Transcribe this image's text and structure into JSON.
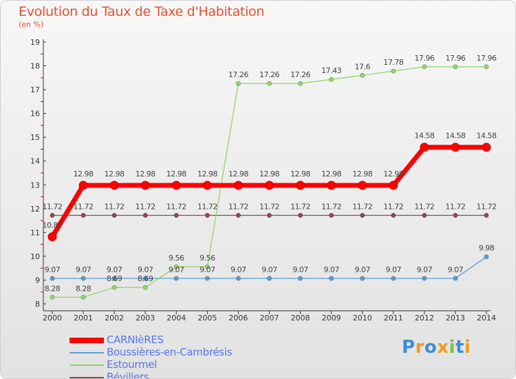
{
  "header": {
    "title": "Evolution du Taux de Taxe d'Habitation",
    "subtitle": "(en %)"
  },
  "logo": {
    "text": "Proxiti",
    "colors": [
      "#3a8fd6",
      "#f29b1d",
      "#3a8fd6",
      "#f29b1d",
      "#7bc043",
      "#3a8fd6",
      "#f29b1d"
    ]
  },
  "chart_data": {
    "type": "line",
    "title": "Evolution du Taux de Taxe d'Habitation",
    "ylabel": "(en %)",
    "x": [
      "2000",
      "2001",
      "2002",
      "2003",
      "2004",
      "2005",
      "2006",
      "2007",
      "2008",
      "2009",
      "2010",
      "2011",
      "2012",
      "2013",
      "2014"
    ],
    "ylim": [
      8,
      19
    ],
    "yticks": [
      8,
      9,
      10,
      11,
      12,
      13,
      14,
      15,
      16,
      17,
      18,
      19
    ],
    "grid": false,
    "legend_position": "bottom-left",
    "series": [
      {
        "name": "CARNIèRES",
        "color": "#ff0000",
        "values": [
          10.82,
          12.98,
          12.98,
          12.98,
          12.98,
          12.98,
          12.98,
          12.98,
          12.98,
          12.98,
          12.98,
          12.98,
          14.58,
          14.58,
          14.58
        ],
        "labels": [
          "10.82",
          "12.98",
          "12.98",
          "12.98",
          "12.98",
          "12.98",
          "12.98",
          "12.98",
          "12.98",
          "12.98",
          "12.98",
          "12.98",
          "14.58",
          "14.58",
          "14.58"
        ]
      },
      {
        "name": "Boussières-en-Cambrésis",
        "color": "#5b9bd5",
        "values": [
          9.07,
          9.07,
          9.07,
          9.07,
          9.07,
          9.07,
          9.07,
          9.07,
          9.07,
          9.07,
          9.07,
          9.07,
          9.07,
          9.07,
          9.98
        ],
        "labels": [
          "9.07",
          "9.07",
          "9.07",
          "9.07",
          "9.07",
          "9.07",
          "9.07",
          "9.07",
          "9.07",
          "9.07",
          "9.07",
          "9.07",
          "9.07",
          "9.07",
          "9.98"
        ]
      },
      {
        "name": "Estourmel",
        "color": "#8fd66a",
        "values": [
          8.28,
          8.28,
          8.69,
          8.69,
          9.56,
          9.56,
          17.26,
          17.26,
          17.26,
          17.43,
          17.6,
          17.78,
          17.96,
          17.96,
          17.96
        ],
        "labels": [
          "8.28",
          "8.28",
          "8.69",
          "8.69",
          "9.56",
          "9.56",
          "17.26",
          "17.26",
          "17.26",
          "17.43",
          "17.6",
          "17.78",
          "17.96",
          "17.96",
          "17.96"
        ]
      },
      {
        "name": "Bévillers",
        "color": "#8b4b4b",
        "values": [
          11.72,
          11.72,
          11.72,
          11.72,
          11.72,
          11.72,
          11.72,
          11.72,
          11.72,
          11.72,
          11.72,
          11.72,
          11.72,
          11.72,
          11.72
        ],
        "labels": [
          "11.72",
          "11.72",
          "11.72",
          "11.72",
          "11.72",
          "11.72",
          "11.72",
          "11.72",
          "11.72",
          "11.72",
          "11.72",
          "11.72",
          "11.72",
          "11.72",
          "11.72"
        ]
      }
    ]
  }
}
